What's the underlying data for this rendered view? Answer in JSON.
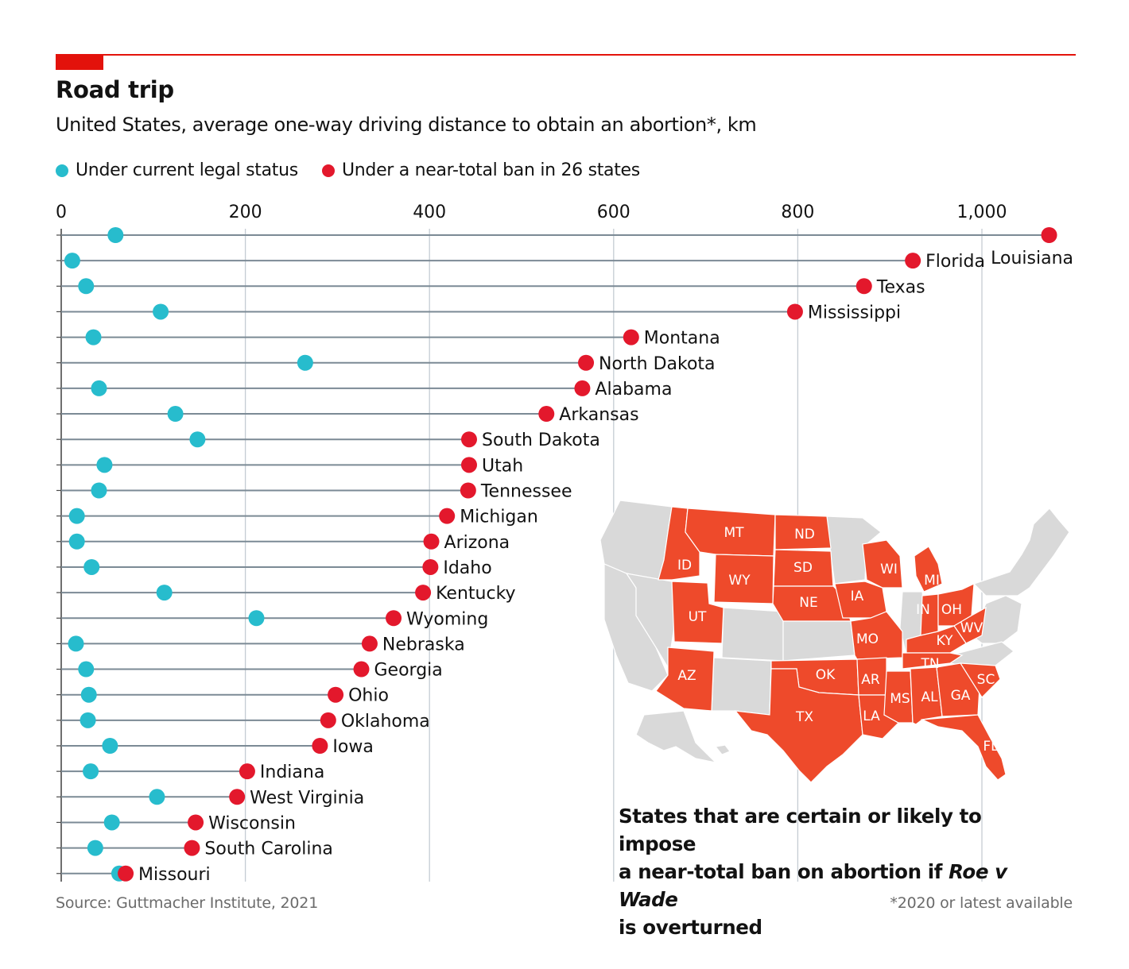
{
  "title": "Road trip",
  "subtitle": "United States, average one-way driving distance to obtain an abortion*, km",
  "legend": {
    "current": "Under current legal status",
    "ban": "Under a near-total ban in 26 states"
  },
  "colors": {
    "current": "#27bccd",
    "ban": "#e3182c",
    "map_ban": "#ee4a2b",
    "map_other": "#d9d9d9",
    "accent": "#e3120b"
  },
  "chart_data": {
    "type": "dumbbell",
    "title": "Road trip",
    "xlabel": "km",
    "xlim": [
      0,
      1075
    ],
    "xticks": [
      0,
      200,
      400,
      600,
      800,
      1000
    ],
    "xtick_labels": [
      "0",
      "200",
      "400",
      "600",
      "800",
      "1,000"
    ],
    "series": [
      {
        "name": "Under current legal status",
        "values": [
          59,
          12,
          27,
          108,
          35,
          265,
          41,
          124,
          148,
          47,
          41,
          17,
          17,
          33,
          112,
          212,
          16,
          27,
          30,
          29,
          53,
          32,
          104,
          55,
          37,
          63
        ]
      },
      {
        "name": "Under a near-total ban in 26 states",
        "values": [
          1073,
          925,
          872,
          797,
          619,
          570,
          566,
          527,
          443,
          443,
          442,
          419,
          402,
          401,
          393,
          361,
          335,
          326,
          298,
          290,
          281,
          202,
          191,
          146,
          142,
          70
        ]
      }
    ],
    "categories": [
      "Louisiana",
      "Florida",
      "Texas",
      "Mississippi",
      "Montana",
      "North Dakota",
      "Alabama",
      "Arkansas",
      "South Dakota",
      "Utah",
      "Tennessee",
      "Michigan",
      "Arizona",
      "Idaho",
      "Kentucky",
      "Wyoming",
      "Nebraska",
      "Georgia",
      "Ohio",
      "Oklahoma",
      "Iowa",
      "Indiana",
      "West Virginia",
      "Wisconsin",
      "South Carolina",
      "Missouri"
    ]
  },
  "map": {
    "caption_line1": "States that are certain or likely to impose",
    "caption_line2_pre": "a near-total ban on abortion if ",
    "caption_line2_em": "Roe v Wade",
    "caption_line3": "is overturned",
    "state_labels": [
      "MT",
      "ND",
      "ID",
      "WY",
      "SD",
      "NE",
      "IA",
      "WI",
      "MI",
      "UT",
      "IN",
      "OH",
      "WV",
      "KY",
      "MO",
      "TN",
      "AZ",
      "OK",
      "AR",
      "SC",
      "MS",
      "AL",
      "GA",
      "TX",
      "LA",
      "FL"
    ]
  },
  "source": "Source: Guttmacher Institute, 2021",
  "footnote": "*2020 or latest available"
}
